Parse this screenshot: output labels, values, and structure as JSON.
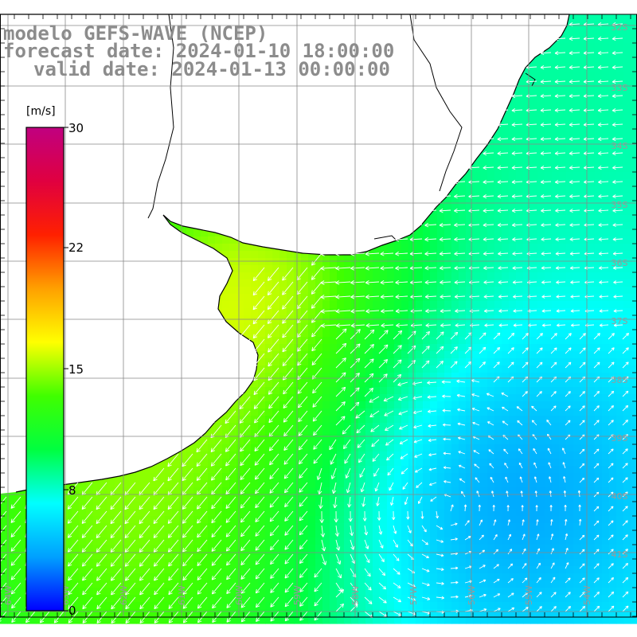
{
  "title": {
    "line1": "modelo GEFS-WAVE (NCEP)",
    "line2": "forecast date: 2024-01-10 18:00:00",
    "line3": "valid date: 2024-01-13 00:00:00"
  },
  "colorbar": {
    "unit": "[m/s]",
    "ticks": [
      "30",
      "22",
      "15",
      "8",
      "0"
    ],
    "min": 0,
    "max": 30,
    "colors": [
      "#0000ff",
      "#00a0ff",
      "#00ffff",
      "#00ff40",
      "#40ff00",
      "#ffff00",
      "#ffa000",
      "#ff2000",
      "#e00040",
      "#c00080"
    ]
  },
  "map": {
    "land_color": "#ffffff",
    "coast_color": "#000000",
    "grid_color": "#888888",
    "arrow_color": "#ffffff",
    "lat_labels": [
      "32S",
      "33S",
      "34S",
      "35S",
      "36S",
      "37S",
      "38S",
      "39S",
      "40S",
      "41S"
    ],
    "lon_labels": [
      "64W",
      "63W",
      "62W",
      "61W",
      "60W",
      "59W",
      "58W",
      "57W",
      "56W",
      "55W",
      "54W"
    ]
  }
}
